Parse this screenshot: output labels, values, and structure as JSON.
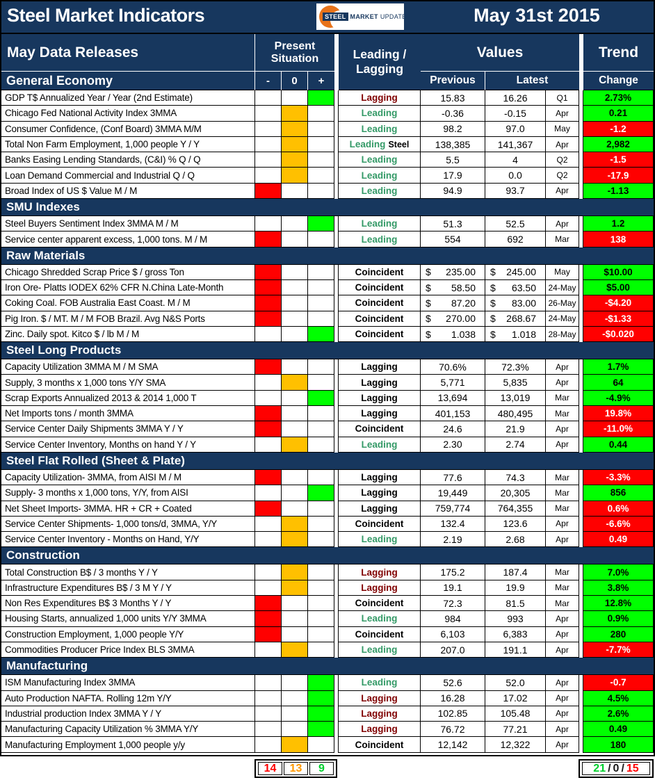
{
  "title": {
    "text": "Steel Market Indicators",
    "date": "May 31st 2015"
  },
  "logo": {
    "steel": "STEEL",
    "market": "MARKET",
    "update": "UPDATE"
  },
  "colors": {
    "navy": "#17375E",
    "positive_bg": "#00FF00",
    "neutral_bg": "#FFC000",
    "negative_bg": "#FF0000",
    "leading_text": "#339966",
    "lagging_text": "#800000",
    "logo_orange": "#E8731A"
  },
  "header": {
    "data_releases": "May Data Releases",
    "present_situation": "Present Situation",
    "minus": "-",
    "zero": "0",
    "plus": "+",
    "leading_lagging": "Leading / Lagging",
    "values": "Values",
    "previous": "Previous",
    "latest": "Latest",
    "trend": "Trend",
    "change": "Change"
  },
  "table": {
    "sections": [
      {
        "name": "General Economy",
        "rows": [
          {
            "label": "GDP T$ Annualized Year / Year (2nd Estimate)",
            "sit": "plus",
            "ind": "Lagging",
            "ind_style": "maroon",
            "prev": "15.83",
            "latest": "16.26",
            "month": "Q1",
            "change": "2.73%",
            "dir": "up"
          },
          {
            "label": "Chicago Fed National Activity Index 3MMA",
            "sit": "zero",
            "ind": "Leading",
            "ind_style": "green",
            "prev": "-0.36",
            "latest": "-0.15",
            "month": "Apr",
            "change": "0.21",
            "dir": "up"
          },
          {
            "label": "Consumer Confidence, (Conf Board) 3MMA M/M",
            "sit": "zero",
            "ind": "Leading",
            "ind_style": "green",
            "prev": "98.2",
            "latest": "97.0",
            "month": "May",
            "change": "-1.2",
            "dir": "down"
          },
          {
            "label": "Total Non Farm Employment, 1,000 people Y / Y",
            "sit": "zero",
            "ind": "Leading",
            "ind_style": "green",
            "ind_suffix": "Steel",
            "prev": "138,385",
            "latest": "141,367",
            "month": "Apr",
            "change": "2,982",
            "dir": "up"
          },
          {
            "label": "Banks Easing Lending Standards, (C&I) % Q / Q",
            "sit": "zero",
            "ind": "Leading",
            "ind_style": "green",
            "prev": "5.5",
            "latest": "4",
            "month": "Q2",
            "change": "-1.5",
            "dir": "down"
          },
          {
            "label": "Loan Demand Commercial and Industrial Q / Q",
            "sit": "zero",
            "ind": "Leading",
            "ind_style": "green",
            "prev": "17.9",
            "latest": "0.0",
            "month": "Q2",
            "change": "-17.9",
            "dir": "down"
          },
          {
            "label": "Broad Index of US $ Value M / M",
            "sit": "minus",
            "ind": "Leading",
            "ind_style": "green",
            "prev": "94.9",
            "latest": "93.7",
            "month": "Apr",
            "change": "-1.13",
            "dir": "up"
          }
        ]
      },
      {
        "name": "SMU Indexes",
        "rows": [
          {
            "label": "Steel Buyers Sentiment Index 3MMA M / M",
            "sit": "plus",
            "ind": "Leading",
            "ind_style": "green",
            "prev": "51.3",
            "latest": "52.5",
            "month": "Apr",
            "change": "1.2",
            "dir": "up"
          },
          {
            "label": "Service center apparent excess, 1,000 tons. M / M",
            "sit": "minus",
            "ind": "Leading",
            "ind_style": "green",
            "prev": "554",
            "latest": "692",
            "month": "Mar",
            "change": "138",
            "dir": "down"
          }
        ]
      },
      {
        "name": "Raw Materials",
        "rows": [
          {
            "label": "Chicago Shredded Scrap Price $ / gross Ton",
            "sit": "minus",
            "ind": "Coincident",
            "ind_style": "black",
            "dollar": true,
            "prev": "235.00",
            "latest": "245.00",
            "month": "May",
            "change": "$10.00",
            "dir": "up"
          },
          {
            "label": "Iron Ore- Platts IODEX 62% CFR N.China Late-Month",
            "sit": "minus",
            "ind": "Coincident",
            "ind_style": "black",
            "dollar": true,
            "prev": "58.50",
            "latest": "63.50",
            "month": "24-May",
            "change": "$5.00",
            "dir": "up"
          },
          {
            "label": "Coking Coal. FOB Australia East Coast. M / M",
            "sit": "minus",
            "ind": "Coincident",
            "ind_style": "black",
            "dollar": true,
            "prev": "87.20",
            "latest": "83.00",
            "month": "26-May",
            "change": "-$4.20",
            "dir": "down"
          },
          {
            "label": "Pig Iron. $ / MT. M / M FOB Brazil. Avg N&S Ports",
            "sit": "minus",
            "ind": "Coincident",
            "ind_style": "black",
            "dollar": true,
            "prev": "270.00",
            "latest": "268.67",
            "month": "24-May",
            "change": "-$1.33",
            "dir": "down"
          },
          {
            "label": "Zinc. Daily spot. Kitco $ / lb M / M",
            "sit": "plus",
            "ind": "Coincident",
            "ind_style": "black",
            "dollar": true,
            "prev": "1.038",
            "latest": "1.018",
            "month": "28-May",
            "change": "-$0.020",
            "dir": "down"
          }
        ]
      },
      {
        "name": "Steel Long Products",
        "rows": [
          {
            "label": "Capacity Utilization 3MMA  M / M SMA",
            "sit": "minus",
            "ind": "Lagging",
            "ind_style": "black",
            "prev": "70.6%",
            "latest": "72.3%",
            "month": "Apr",
            "change": "1.7%",
            "dir": "up"
          },
          {
            "label": "Supply, 3 months x 1,000 tons Y/Y SMA",
            "sit": "zero",
            "ind": "Lagging",
            "ind_style": "black",
            "prev": "5,771",
            "latest": "5,835",
            "month": "Apr",
            "change": "64",
            "dir": "up"
          },
          {
            "label": "Scrap Exports Annualized 2013 & 2014 1,000 T",
            "sit": "plus",
            "ind": "Lagging",
            "ind_style": "black",
            "prev": "13,694",
            "latest": "13,019",
            "month": "Mar",
            "change": "-4.9%",
            "dir": "up"
          },
          {
            "label": "Net Imports tons / month 3MMA",
            "sit": "minus",
            "ind": "Lagging",
            "ind_style": "black",
            "prev": "401,153",
            "latest": "480,495",
            "month": "Mar",
            "change": "19.8%",
            "dir": "down"
          },
          {
            "label": "Service Center Daily Shipments 3MMA Y / Y",
            "sit": "minus",
            "ind": "Coincident",
            "ind_style": "black",
            "prev": "24.6",
            "latest": "21.9",
            "month": "Apr",
            "change": "-11.0%",
            "dir": "down"
          },
          {
            "label": "Service Center Inventory, Months on hand Y / Y",
            "sit": "zero",
            "ind": "Leading",
            "ind_style": "green",
            "prev": "2.30",
            "latest": "2.74",
            "month": "Apr",
            "change": "0.44",
            "dir": "up"
          }
        ]
      },
      {
        "name": "Steel Flat Rolled (Sheet & Plate)",
        "rows": [
          {
            "label": "Capacity Utilization- 3MMA, from AISI M / M",
            "sit": "minus",
            "ind": "Lagging",
            "ind_style": "black",
            "prev": "77.6",
            "latest": "74.3",
            "month": "Mar",
            "change": "-3.3%",
            "dir": "down"
          },
          {
            "label": "Supply- 3 months x 1,000 tons, Y/Y, from AISI",
            "sit": "plus",
            "ind": "Lagging",
            "ind_style": "black",
            "prev": "19,449",
            "latest": "20,305",
            "month": "Mar",
            "change": "856",
            "dir": "up"
          },
          {
            "label": "Net Sheet Imports- 3MMA. HR + CR + Coated",
            "sit": "minus",
            "ind": "Lagging",
            "ind_style": "black",
            "prev": "759,774",
            "latest": "764,355",
            "month": "Mar",
            "change": "0.6%",
            "dir": "down"
          },
          {
            "label": "Service Center Shipments- 1,000 tons/d, 3MMA, Y/Y",
            "sit": "zero",
            "ind": "Coincident",
            "ind_style": "black",
            "prev": "132.4",
            "latest": "123.6",
            "month": "Apr",
            "change": "-6.6%",
            "dir": "down"
          },
          {
            "label": "Service Center Inventory - Months on Hand, Y/Y",
            "sit": "zero",
            "ind": "Leading",
            "ind_style": "green",
            "prev": "2.19",
            "latest": "2.68",
            "month": "Apr",
            "change": "0.49",
            "dir": "down"
          }
        ]
      },
      {
        "name": "Construction",
        "rows": [
          {
            "label": "Total Construction B$ /  3 months Y / Y",
            "sit": "zero",
            "ind": "Lagging",
            "ind_style": "maroon",
            "prev": "175.2",
            "latest": "187.4",
            "month": "Mar",
            "change": "7.0%",
            "dir": "up"
          },
          {
            "label": "Infrastructure Expenditures B$ / 3 M   Y / Y",
            "sit": "zero",
            "ind": "Lagging",
            "ind_style": "maroon",
            "prev": "19.1",
            "latest": "19.9",
            "month": "Mar",
            "change": "3.8%",
            "dir": "up"
          },
          {
            "label": "Non Res Expenditures B$  3 Months   Y / Y",
            "sit": "minus",
            "ind": "Coincident",
            "ind_style": "black",
            "prev": "72.3",
            "latest": "81.5",
            "month": "Mar",
            "change": "12.8%",
            "dir": "up"
          },
          {
            "label": "Housing Starts, annualized 1,000 units Y/Y 3MMA",
            "sit": "minus",
            "ind": "Leading",
            "ind_style": "green",
            "prev": "984",
            "latest": "993",
            "month": "Apr",
            "change": "0.9%",
            "dir": "up"
          },
          {
            "label": "Construction Employment, 1,000 people Y/Y",
            "sit": "minus",
            "ind": "Coincident",
            "ind_style": "black",
            "prev": "6,103",
            "latest": "6,383",
            "month": "Apr",
            "change": "280",
            "dir": "up"
          },
          {
            "label": "Commodities Producer Price Index BLS 3MMA",
            "sit": "zero",
            "ind": "Leading",
            "ind_style": "green",
            "prev": "207.0",
            "latest": "191.1",
            "month": "Apr",
            "change": "-7.7%",
            "dir": "down"
          }
        ]
      },
      {
        "name": "Manufacturing",
        "rows": [
          {
            "label": "ISM Manufacturing Index 3MMA",
            "sit": "plus",
            "ind": "Leading",
            "ind_style": "green",
            "prev": "52.6",
            "latest": "52.0",
            "month": "Apr",
            "change": "-0.7",
            "dir": "down"
          },
          {
            "label": "Auto Production NAFTA. Rolling 12m Y/Y",
            "sit": "plus",
            "ind": "Lagging",
            "ind_style": "maroon",
            "prev": "16.28",
            "latest": "17.02",
            "month": "Apr",
            "change": "4.5%",
            "dir": "up"
          },
          {
            "label": "Industrial production Index 3MMA Y / Y",
            "sit": "plus",
            "ind": "Lagging",
            "ind_style": "maroon",
            "prev": "102.85",
            "latest": "105.48",
            "month": "Apr",
            "change": "2.6%",
            "dir": "up"
          },
          {
            "label": "Manufacturing Capacity Utilization % 3MMA Y/Y",
            "sit": "plus",
            "ind": "Lagging",
            "ind_style": "maroon",
            "prev": "76.72",
            "latest": "77.21",
            "month": "Apr",
            "change": "0.49",
            "dir": "up"
          },
          {
            "label": "Manufacturing Employment 1,000 people y/y",
            "sit": "zero",
            "ind": "Coincident",
            "ind_style": "black",
            "prev": "12,142",
            "latest": "12,322",
            "month": "Apr",
            "change": "180",
            "dir": "up"
          }
        ]
      }
    ]
  },
  "footer": {
    "situation_counts": {
      "negative": "14",
      "neutral": "13",
      "positive": "9"
    },
    "trend_counts": {
      "up": "21",
      "zero": "0",
      "down": "15"
    },
    "separator": "/"
  }
}
